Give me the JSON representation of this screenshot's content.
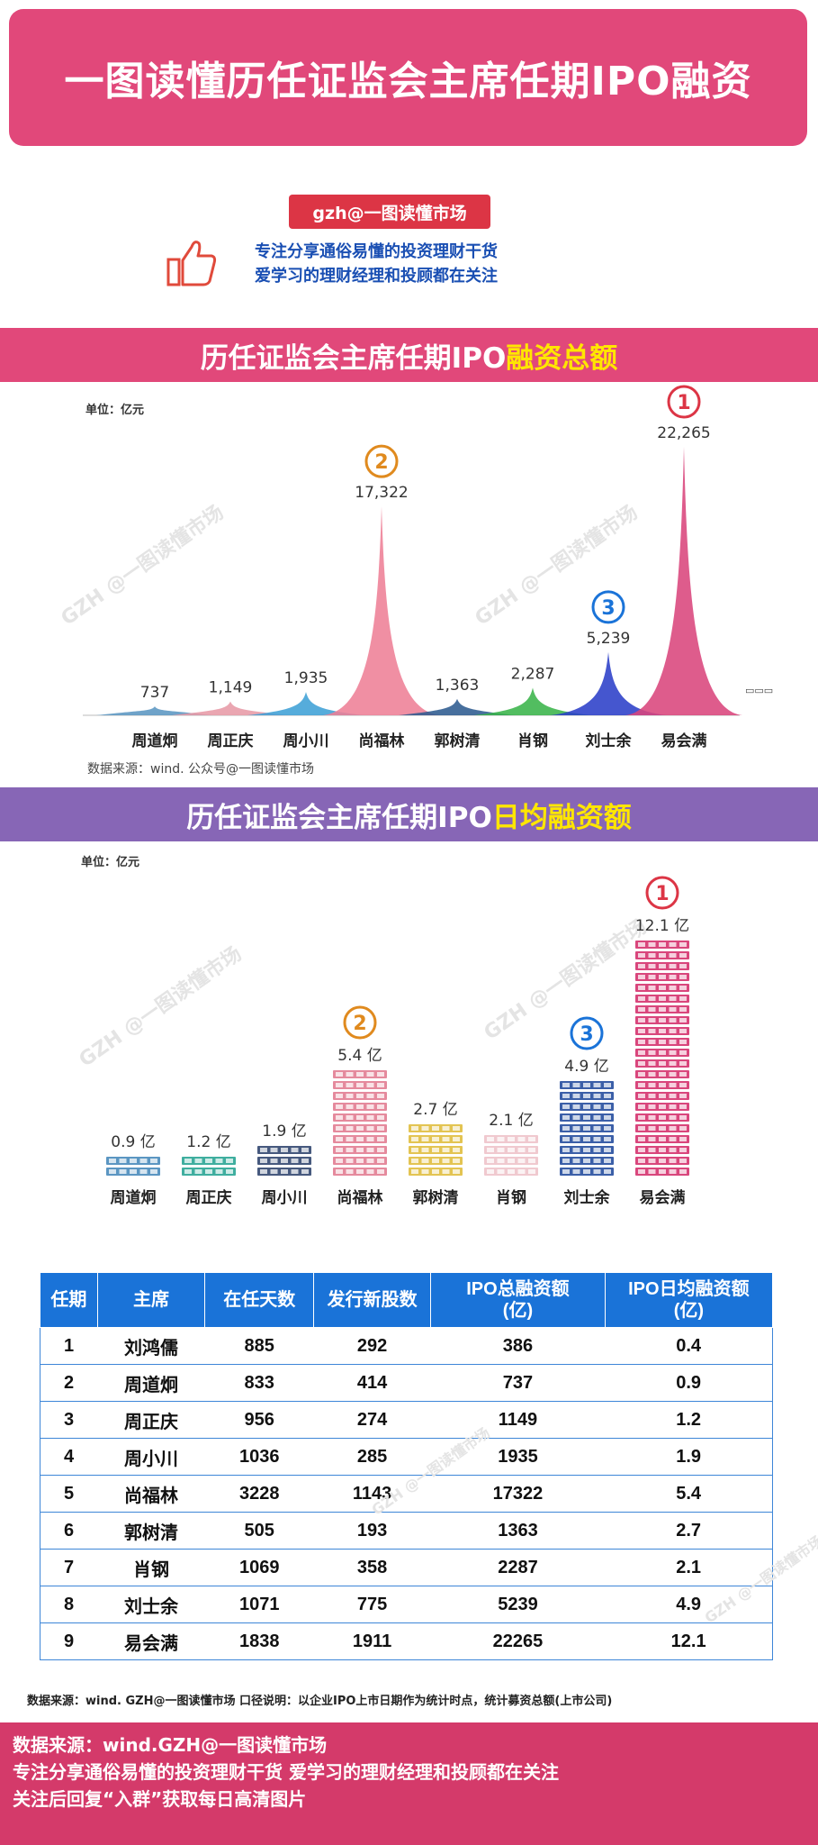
{
  "page": {
    "title": "一图读懂历任证监会主席任期IPO融资",
    "tag": "gzh@一图读懂市场",
    "slogan_lines": [
      "专注分享通俗易懂的投资理财干货",
      "爱学习的理财经理和投顾都在关注"
    ],
    "watermark_gzh": "GZH",
    "watermark_text": "@一图读懂市场"
  },
  "section1": {
    "title_prefix": "历任证监会主席任期IPO",
    "title_highlight": "融资总额",
    "unit": "单位：亿元",
    "source": "数据来源：wind. 公众号@一图读懂市场",
    "legend_stub": "▭▭▭"
  },
  "section2": {
    "title_prefix": "历任证监会主席任期IPO",
    "title_highlight": "日均融资额",
    "unit": "单位：亿元"
  },
  "chart_data": [
    {
      "type": "area",
      "title": "历任证监会主席任期IPO融资总额",
      "ylabel": "单位：亿元",
      "categories": [
        "周道炯",
        "周正庆",
        "周小川",
        "尚福林",
        "郭树清",
        "肖钢",
        "刘士余",
        "易会满"
      ],
      "values": [
        737,
        1149,
        1935,
        17322,
        1363,
        2287,
        5239,
        22265
      ],
      "value_labels": [
        "737",
        "1,149",
        "1,935",
        "17,322",
        "1,363",
        "2,287",
        "5,239",
        "22,265"
      ],
      "ranks": [
        "",
        "",
        "",
        "2",
        "",
        "",
        "3",
        "1"
      ],
      "colors": [
        "#5b96c2",
        "#e79aa6",
        "#3fa0d6",
        "#ee7f96",
        "#2e5b8f",
        "#3ab44a",
        "#2b3fc8",
        "#d9467c"
      ],
      "ylim": [
        0,
        23000
      ]
    },
    {
      "type": "bar",
      "title": "历任证监会主席任期IPO日均融资额",
      "ylabel": "单位：亿元",
      "categories": [
        "周道炯",
        "周正庆",
        "周小川",
        "尚福林",
        "郭树清",
        "肖钢",
        "刘士余",
        "易会满"
      ],
      "values": [
        0.9,
        1.2,
        1.9,
        5.4,
        2.7,
        2.1,
        4.9,
        12.1
      ],
      "value_labels": [
        "0.9 亿",
        "1.2 亿",
        "1.9 亿",
        "5.4 亿",
        "2.7 亿",
        "2.1 亿",
        "4.9 亿",
        "12.1 亿"
      ],
      "ranks": [
        "",
        "",
        "",
        "2",
        "",
        "",
        "3",
        "1"
      ],
      "colors": [
        "#5b96c2",
        "#3fae9f",
        "#46597e",
        "#e58a9d",
        "#e3c452",
        "#f0c9cf",
        "#3b5fa8",
        "#d9467c"
      ],
      "ylim": [
        0,
        12.1
      ]
    },
    {
      "type": "table",
      "columns": [
        "任期",
        "主席",
        "在任天数",
        "发行新股数",
        "IPO总融资额\n(亿)",
        "IPO日均融资额\n(亿)"
      ],
      "rows": [
        [
          "1",
          "刘鸿儒",
          "885",
          "292",
          "386",
          "0.4"
        ],
        [
          "2",
          "周道炯",
          "833",
          "414",
          "737",
          "0.9"
        ],
        [
          "3",
          "周正庆",
          "956",
          "274",
          "1149",
          "1.2"
        ],
        [
          "4",
          "周小川",
          "1036",
          "285",
          "1935",
          "1.9"
        ],
        [
          "5",
          "尚福林",
          "3228",
          "1143",
          "17322",
          "5.4"
        ],
        [
          "6",
          "郭树清",
          "505",
          "193",
          "1363",
          "2.7"
        ],
        [
          "7",
          "肖钢",
          "1069",
          "358",
          "2287",
          "2.1"
        ],
        [
          "8",
          "刘士余",
          "1071",
          "775",
          "5239",
          "4.9"
        ],
        [
          "9",
          "易会满",
          "1838",
          "1911",
          "22265",
          "12.1"
        ]
      ]
    }
  ],
  "table_note": "数据来源：wind.  GZH@一图读懂市场   口径说明：以企业IPO上市日期作为统计时点，统计募资总额(上市公司)",
  "footer": {
    "line1": "数据来源：wind.GZH@一图读懂市场",
    "line2": "专注分享通俗易懂的投资理财干货    爱学习的理财经理和投顾都在关注",
    "line3": "关注后回复“入群”获取每日高清图片"
  },
  "icons": {
    "thumb": "thumbs-up-icon",
    "rank": "rank-circle-icon"
  }
}
